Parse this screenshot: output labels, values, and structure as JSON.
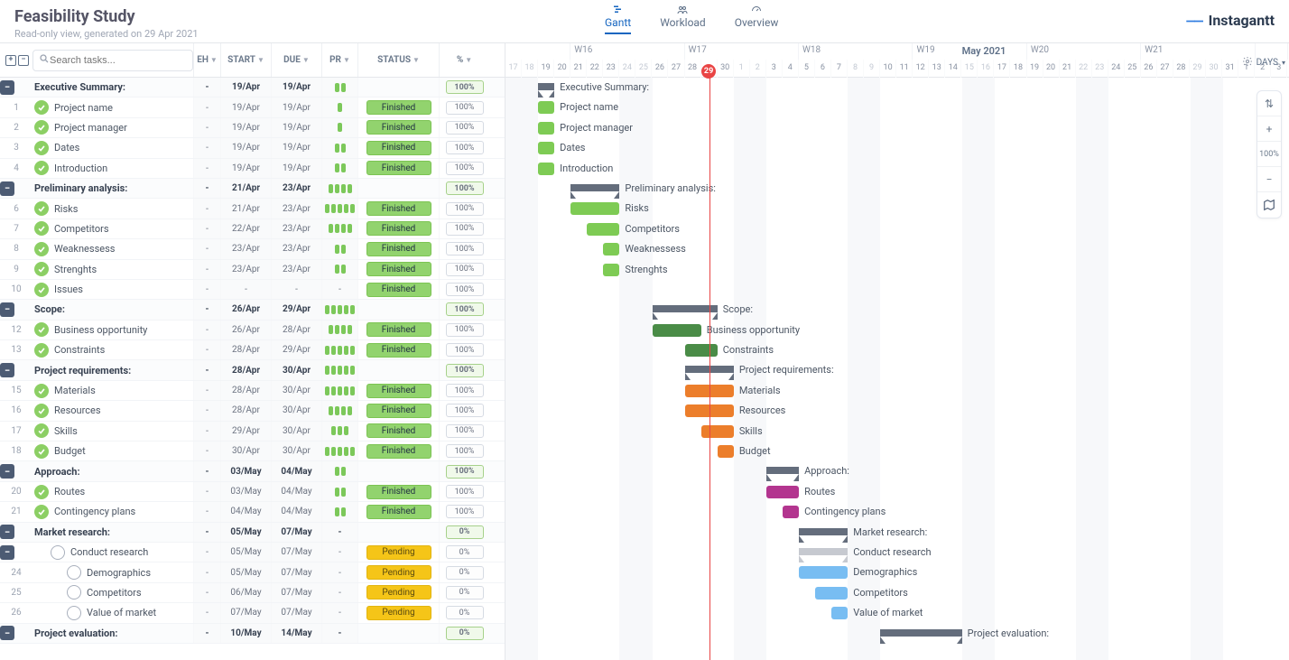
{
  "title": "Feasibility Study",
  "subtitle": "Read-only view, generated on 29 Apr 2021",
  "tabs": [
    {
      "label": "Gantt",
      "icon": "gantt",
      "active": true
    },
    {
      "label": "Workload",
      "icon": "people",
      "active": false
    },
    {
      "label": "Overview",
      "icon": "gauge",
      "active": false
    }
  ],
  "brand": "Instagantt",
  "search_placeholder": "Search tasks...",
  "columns": {
    "eh": "EH",
    "start": "START",
    "due": "DUE",
    "pr": "PR",
    "status": "STATUS",
    "pct": "%"
  },
  "days_button": "DAYS",
  "status_labels": {
    "finished": "Finished",
    "pending": "Pending"
  },
  "zoom_label": "100%",
  "timeline": {
    "day_width": 18.06,
    "first_day": 17,
    "today_day": 29,
    "month_label": "May 2021",
    "month_label_at_day": 45,
    "weeks": [
      {
        "label": "",
        "span": 4
      },
      {
        "label": "W16",
        "span": 7
      },
      {
        "label": "W17",
        "span": 7
      },
      {
        "label": "W18",
        "span": 7
      },
      {
        "label": "W19",
        "span": 7
      },
      {
        "label": "W20",
        "span": 7
      },
      {
        "label": "W21",
        "span": 7
      },
      {
        "label": "",
        "span": 2
      }
    ],
    "days": [
      17,
      18,
      19,
      20,
      21,
      22,
      23,
      24,
      25,
      26,
      27,
      28,
      29,
      30,
      1,
      2,
      3,
      4,
      5,
      6,
      7,
      8,
      9,
      10,
      11,
      12,
      13,
      14,
      15,
      16,
      17,
      18,
      19,
      20,
      21,
      22,
      23,
      24,
      25,
      26,
      27,
      28,
      29,
      30,
      31,
      1,
      2,
      3
    ],
    "weekends": [
      [
        17,
        18
      ],
      [
        24,
        25
      ],
      [
        31,
        32
      ],
      [
        38,
        39
      ],
      [
        45,
        46
      ],
      [
        52,
        53
      ],
      [
        59,
        60
      ]
    ],
    "colors": {
      "green": "#7ecb54",
      "dgreen": "#4a8c47",
      "orange": "#ec7e2b",
      "purple": "#b3358f",
      "blue": "#78bdf2",
      "dblue": "#3d93d0"
    }
  },
  "rows": [
    {
      "type": "group",
      "num": "",
      "name": "Executive Summary:",
      "start": "19/Apr",
      "due": "19/Apr",
      "pr": 2,
      "pct": "100%",
      "bar": {
        "kind": "group",
        "s": 19,
        "e": 19
      },
      "label": "Executive Summary:"
    },
    {
      "type": "task",
      "num": "1",
      "name": "Project name",
      "done": true,
      "start": "19/Apr",
      "due": "19/Apr",
      "pr": 1,
      "status": "finished",
      "pct": "100%",
      "bar": {
        "s": 19,
        "e": 19,
        "c": "green"
      },
      "label": "Project name",
      "indent": 0
    },
    {
      "type": "task",
      "num": "2",
      "name": "Project manager",
      "done": true,
      "start": "19/Apr",
      "due": "19/Apr",
      "pr": 1,
      "status": "finished",
      "pct": "100%",
      "bar": {
        "s": 19,
        "e": 19,
        "c": "green"
      },
      "label": "Project manager",
      "indent": 0
    },
    {
      "type": "task",
      "num": "3",
      "name": "Dates",
      "done": true,
      "start": "19/Apr",
      "due": "19/Apr",
      "pr": 2,
      "status": "finished",
      "pct": "100%",
      "bar": {
        "s": 19,
        "e": 19,
        "c": "green"
      },
      "label": "Dates",
      "indent": 0
    },
    {
      "type": "task",
      "num": "4",
      "name": "Introduction",
      "done": true,
      "start": "19/Apr",
      "due": "19/Apr",
      "pr": 2,
      "status": "finished",
      "pct": "100%",
      "bar": {
        "s": 19,
        "e": 19,
        "c": "green"
      },
      "label": "Introduction",
      "indent": 0
    },
    {
      "type": "group",
      "num": "",
      "name": "Preliminary analysis:",
      "start": "21/Apr",
      "due": "23/Apr",
      "pr": 4,
      "pct": "100%",
      "bar": {
        "kind": "group",
        "s": 21,
        "e": 23
      },
      "label": "Preliminary analysis:"
    },
    {
      "type": "task",
      "num": "6",
      "name": "Risks",
      "done": true,
      "start": "21/Apr",
      "due": "23/Apr",
      "pr": 5,
      "status": "finished",
      "pct": "100%",
      "bar": {
        "s": 21,
        "e": 23,
        "c": "green"
      },
      "label": "Risks",
      "indent": 0
    },
    {
      "type": "task",
      "num": "7",
      "name": "Competitors",
      "done": true,
      "start": "22/Apr",
      "due": "23/Apr",
      "pr": 4,
      "status": "finished",
      "pct": "100%",
      "bar": {
        "s": 22,
        "e": 23,
        "c": "green"
      },
      "label": "Competitors",
      "indent": 0
    },
    {
      "type": "task",
      "num": "8",
      "name": "Weaknessess",
      "done": true,
      "start": "23/Apr",
      "due": "23/Apr",
      "pr": 2,
      "status": "finished",
      "pct": "100%",
      "bar": {
        "s": 23,
        "e": 23,
        "c": "green"
      },
      "label": "Weaknessess",
      "indent": 0
    },
    {
      "type": "task",
      "num": "9",
      "name": "Strenghts",
      "done": true,
      "start": "23/Apr",
      "due": "23/Apr",
      "pr": 2,
      "status": "finished",
      "pct": "100%",
      "bar": {
        "s": 23,
        "e": 23,
        "c": "green"
      },
      "label": "Strenghts",
      "indent": 0
    },
    {
      "type": "task",
      "num": "10",
      "name": "Issues",
      "done": true,
      "start": "-",
      "due": "-",
      "pr": 0,
      "status": "finished",
      "pct": "100%",
      "bar": null,
      "label": "",
      "indent": 0
    },
    {
      "type": "group",
      "num": "",
      "name": "Scope:",
      "start": "26/Apr",
      "due": "29/Apr",
      "pr": 5,
      "pct": "100%",
      "bar": {
        "kind": "group",
        "s": 26,
        "e": 29
      },
      "label": "Scope:"
    },
    {
      "type": "task",
      "num": "12",
      "name": "Business opportunity",
      "done": true,
      "start": "26/Apr",
      "due": "28/Apr",
      "pr": 4,
      "status": "finished",
      "pct": "100%",
      "bar": {
        "s": 26,
        "e": 28,
        "c": "dgreen"
      },
      "label": "Business opportunity",
      "indent": 0
    },
    {
      "type": "task",
      "num": "13",
      "name": "Constraints",
      "done": true,
      "start": "28/Apr",
      "due": "29/Apr",
      "pr": 5,
      "status": "finished",
      "pct": "100%",
      "bar": {
        "s": 28,
        "e": 29,
        "c": "dgreen"
      },
      "label": "Constraints",
      "indent": 0
    },
    {
      "type": "group",
      "num": "",
      "name": "Project requirements:",
      "start": "28/Apr",
      "due": "30/Apr",
      "pr": 5,
      "pct": "100%",
      "bar": {
        "kind": "group",
        "s": 28,
        "e": 30
      },
      "label": "Project requirements:"
    },
    {
      "type": "task",
      "num": "15",
      "name": "Materials",
      "done": true,
      "start": "28/Apr",
      "due": "30/Apr",
      "pr": 5,
      "status": "finished",
      "pct": "100%",
      "bar": {
        "s": 28,
        "e": 30,
        "c": "orange"
      },
      "label": "Materials",
      "indent": 0
    },
    {
      "type": "task",
      "num": "16",
      "name": "Resources",
      "done": true,
      "start": "28/Apr",
      "due": "30/Apr",
      "pr": 4,
      "status": "finished",
      "pct": "100%",
      "bar": {
        "s": 28,
        "e": 30,
        "c": "orange"
      },
      "label": "Resources",
      "indent": 0
    },
    {
      "type": "task",
      "num": "17",
      "name": "Skills",
      "done": true,
      "start": "29/Apr",
      "due": "30/Apr",
      "pr": 3,
      "status": "finished",
      "pct": "100%",
      "bar": {
        "s": 29,
        "e": 30,
        "c": "orange"
      },
      "label": "Skills",
      "indent": 0
    },
    {
      "type": "task",
      "num": "18",
      "name": "Budget",
      "done": true,
      "start": "30/Apr",
      "due": "30/Apr",
      "pr": 5,
      "status": "finished",
      "pct": "100%",
      "bar": {
        "s": 30,
        "e": 30,
        "c": "orange"
      },
      "label": "Budget",
      "indent": 0
    },
    {
      "type": "group",
      "num": "",
      "name": "Approach:",
      "start": "03/May",
      "due": "04/May",
      "pr": 2,
      "pct": "100%",
      "bar": {
        "kind": "group",
        "s": 33,
        "e": 34
      },
      "label": "Approach:"
    },
    {
      "type": "task",
      "num": "20",
      "name": "Routes",
      "done": true,
      "start": "03/May",
      "due": "04/May",
      "pr": 2,
      "status": "finished",
      "pct": "100%",
      "bar": {
        "s": 33,
        "e": 34,
        "c": "purple"
      },
      "label": "Routes",
      "indent": 0
    },
    {
      "type": "task",
      "num": "21",
      "name": "Contingency plans",
      "done": true,
      "start": "04/May",
      "due": "04/May",
      "pr": 2,
      "status": "finished",
      "pct": "100%",
      "bar": {
        "s": 34,
        "e": 34,
        "c": "purple"
      },
      "label": "Contingency plans",
      "indent": 0
    },
    {
      "type": "group",
      "num": "",
      "name": "Market research:",
      "start": "05/May",
      "due": "07/May",
      "pr": 0,
      "pct": "0%",
      "bar": {
        "kind": "group",
        "s": 35,
        "e": 37
      },
      "label": "Market research:"
    },
    {
      "type": "subgroup",
      "num": "",
      "name": "Conduct research",
      "done": false,
      "start": "05/May",
      "due": "07/May",
      "pr": 0,
      "status": "pending",
      "pct": "0%",
      "bar": {
        "kind": "group",
        "s": 35,
        "e": 37,
        "light": true
      },
      "label": "Conduct research",
      "indent": 1
    },
    {
      "type": "task",
      "num": "24",
      "name": "Demographics",
      "done": false,
      "start": "05/May",
      "due": "07/May",
      "pr": 0,
      "status": "pending",
      "pct": "0%",
      "bar": {
        "s": 35,
        "e": 37,
        "c": "blue"
      },
      "label": "Demographics",
      "indent": 2
    },
    {
      "type": "task",
      "num": "25",
      "name": "Competitors",
      "done": false,
      "start": "06/May",
      "due": "07/May",
      "pr": 0,
      "status": "pending",
      "pct": "0%",
      "bar": {
        "s": 36,
        "e": 37,
        "c": "blue"
      },
      "label": "Competitors",
      "indent": 2
    },
    {
      "type": "task",
      "num": "26",
      "name": "Value of market",
      "done": false,
      "start": "07/May",
      "due": "07/May",
      "pr": 0,
      "status": "pending",
      "pct": "0%",
      "bar": {
        "s": 37,
        "e": 37,
        "c": "blue"
      },
      "label": "Value of market",
      "indent": 2
    },
    {
      "type": "group",
      "num": "",
      "name": "Project evaluation:",
      "start": "10/May",
      "due": "14/May",
      "pr": 0,
      "pct": "0%",
      "bar": {
        "kind": "group",
        "s": 40,
        "e": 44
      },
      "label": "Project evaluation:"
    }
  ]
}
